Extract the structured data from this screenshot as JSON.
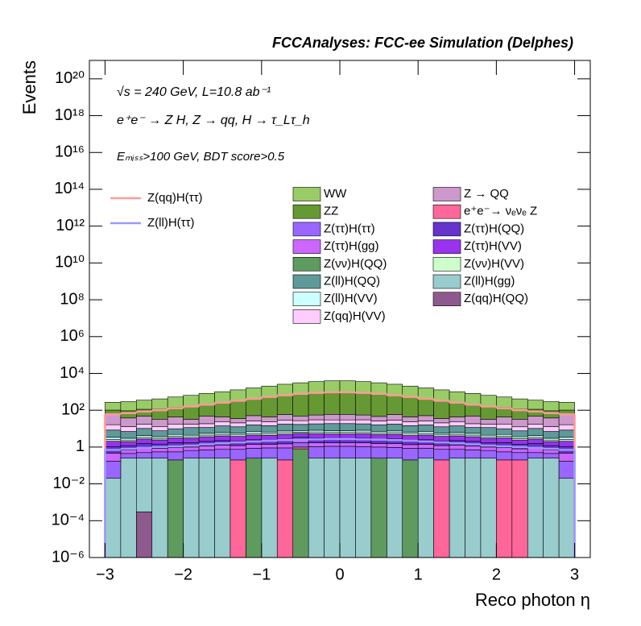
{
  "chart_data": {
    "type": "histogram",
    "stacked": true,
    "title": "FCCAnalyses: FCC-ee Simulation (Delphes)",
    "annotations": [
      "√s = 240 GeV, L=10.8 ab⁻¹",
      "e⁺e⁻ → Z H, Z → qq, H → τ_Lτ_h",
      "Eₘᵢₛₛ>100 GeV, BDT score>0.5"
    ],
    "x_label": "Reco photon η",
    "y_label": "Events",
    "log_y": true,
    "xlim": [
      -3.2,
      3.2
    ],
    "ylim": [
      1e-06,
      1e+21
    ],
    "xticks": [
      {
        "value": -3,
        "label": "−3"
      },
      {
        "value": -2,
        "label": "−2"
      },
      {
        "value": -1,
        "label": "−1"
      },
      0,
      1,
      2,
      3
    ],
    "yticks": [
      {
        "value": 1e-06,
        "label": "10⁻⁶"
      },
      {
        "value": 0.0001,
        "label": "10⁻⁴"
      },
      {
        "value": 0.01,
        "label": "10⁻²"
      },
      1,
      {
        "value": 100,
        "label": "10²"
      },
      {
        "value": 10000,
        "label": "10⁴"
      },
      {
        "value": 1000000.0,
        "label": "10⁶"
      },
      {
        "value": 100000000.0,
        "label": "10⁸"
      },
      {
        "value": 10000000000.0,
        "label": "10¹⁰"
      },
      {
        "value": 1000000000000.0,
        "label": "10¹²"
      },
      {
        "value": 100000000000000.0,
        "label": "10¹⁴"
      },
      {
        "value": 1e+16,
        "label": "10¹⁶"
      },
      {
        "value": 1e+18,
        "label": "10¹⁸"
      },
      {
        "value": 1e+20,
        "label": "10²⁰"
      }
    ],
    "bins": [
      -3,
      -2.8,
      -2.6,
      -2.4,
      -2.2,
      -2,
      -1.8,
      -1.6,
      -1.4,
      -1.2,
      -1,
      -0.8,
      -0.6,
      -0.4,
      -0.2,
      0,
      0.2,
      0.4,
      0.6,
      0.8,
      1,
      1.2,
      1.4,
      1.6,
      1.8,
      2,
      2.2,
      2.4,
      2.6,
      2.8,
      3
    ],
    "series": [
      {
        "name": "Z(qq)H(QQ)",
        "color": "#8e5a8e",
        "values": [
          0,
          0,
          0.0003,
          0,
          0,
          0,
          0,
          0,
          0,
          0,
          0,
          0,
          0,
          0,
          0,
          0,
          0,
          0,
          0,
          0,
          0,
          0,
          0,
          0,
          0,
          0,
          0,
          0,
          0,
          0
        ]
      },
      {
        "name": "Z(ll)H(gg)",
        "color": "#99cccc",
        "values": [
          0.02,
          0.25,
          0.25,
          0.25,
          0,
          0.25,
          0.25,
          0.25,
          0,
          0,
          0.25,
          0,
          0,
          0.25,
          0.25,
          0.25,
          0.25,
          0,
          0.25,
          0,
          0.25,
          0,
          0.25,
          0.25,
          0.25,
          0,
          0,
          0.25,
          0.25,
          0.02
        ]
      },
      {
        "name": "Z(νν)H(QQ)",
        "color": "#5f9a5f",
        "values": [
          0,
          0,
          0,
          0,
          0.2,
          0,
          0,
          0,
          0,
          0.25,
          0,
          0,
          0.8,
          0,
          0,
          0,
          0,
          0.25,
          0,
          0.2,
          0,
          0,
          0,
          0,
          0,
          0,
          0,
          0,
          0,
          0
        ]
      },
      {
        "name": "e⁺e⁻→ νₑνₑ Z",
        "color": "#ff6699",
        "values": [
          0,
          0,
          0,
          0,
          0,
          0,
          0,
          0,
          0.2,
          0,
          0,
          0.2,
          0.2,
          0,
          0,
          0,
          0,
          0,
          0,
          0,
          0,
          0.2,
          0,
          0,
          0,
          0.2,
          0.2,
          0,
          0,
          0
        ]
      },
      {
        "name": "Z(ττ)H(ττ)",
        "color": "#9966ff",
        "values": [
          0.15,
          0.2,
          0.25,
          0.3,
          0.35,
          0.4,
          0.45,
          0.5,
          0.55,
          0.6,
          0.65,
          0.7,
          0.75,
          0.8,
          0.85,
          0.85,
          0.8,
          0.75,
          0.7,
          0.65,
          0.6,
          0.55,
          0.5,
          0.45,
          0.4,
          0.35,
          0.3,
          0.25,
          0.2,
          0.15
        ]
      },
      {
        "name": "Z(ττ)H(gg)",
        "color": "#cc66ff",
        "values": [
          0.3,
          0.25,
          0.35,
          0.3,
          0.4,
          0.35,
          0.45,
          0.5,
          0.45,
          0.55,
          0.5,
          0.6,
          0.55,
          0.65,
          0.6,
          0.6,
          0.65,
          0.55,
          0.6,
          0.5,
          0.55,
          0.45,
          0.5,
          0.45,
          0.35,
          0.4,
          0.3,
          0.35,
          0.25,
          0.3
        ]
      },
      {
        "name": "Z(ττ)H(QQ)",
        "color": "#6633cc",
        "values": [
          0.6,
          0.5,
          0.7,
          0.6,
          0.8,
          0.7,
          0.9,
          1,
          0.9,
          1.1,
          1,
          1.2,
          1.1,
          1.3,
          1.2,
          1.2,
          1.3,
          1.1,
          1.2,
          1,
          1.1,
          0.9,
          1,
          0.9,
          0.7,
          0.8,
          0.6,
          0.7,
          0.5,
          0.6
        ]
      },
      {
        "name": "Z(ττ)H(VV)",
        "color": "#9933ee",
        "values": [
          1,
          0.8,
          1.2,
          1,
          1.4,
          1.3,
          1.6,
          1.8,
          1.7,
          2,
          1.9,
          2.2,
          2.1,
          2.4,
          2.3,
          2.3,
          2.4,
          2.1,
          2.2,
          1.9,
          2,
          1.7,
          1.8,
          1.6,
          1.3,
          1.4,
          1,
          1.2,
          0.8,
          1
        ]
      },
      {
        "name": "Z(νν)H(VV)",
        "color": "#ccffcc",
        "values": [
          0.5,
          0.4,
          0.6,
          0.5,
          0.7,
          0.6,
          0.8,
          0.9,
          0.8,
          1,
          0.9,
          1.1,
          1,
          1.2,
          1.1,
          1.1,
          1.2,
          1,
          1.1,
          0.9,
          1,
          0.8,
          0.9,
          0.8,
          0.6,
          0.7,
          0.5,
          0.6,
          0.4,
          0.5
        ]
      },
      {
        "name": "Z(ll)H(VV)",
        "color": "#ccffff",
        "values": [
          0.8,
          0.6,
          0.9,
          0.7,
          1,
          0.8,
          1.1,
          1.2,
          1,
          1.4,
          1.3,
          1.5,
          1.4,
          1.6,
          1.5,
          1.5,
          1.6,
          1.4,
          1.5,
          1.3,
          1.4,
          1,
          1.2,
          1.1,
          0.8,
          1,
          0.7,
          0.9,
          0.6,
          0.8
        ]
      },
      {
        "name": "Z(ll)H(QQ)",
        "color": "#5f9999",
        "values": [
          5,
          4,
          6,
          4,
          5,
          7,
          6,
          8,
          7,
          9,
          8,
          10,
          9,
          10,
          11,
          11,
          10,
          9,
          10,
          8,
          9,
          7,
          8,
          6,
          7,
          5,
          4,
          6,
          4,
          5
        ]
      },
      {
        "name": "Z(qq)H(VV)",
        "color": "#ffccff",
        "values": [
          8,
          6,
          7,
          5,
          8,
          6,
          7,
          9,
          8,
          10,
          9,
          11,
          10,
          12,
          11,
          11,
          12,
          10,
          11,
          9,
          10,
          8,
          9,
          7,
          6,
          8,
          5,
          7,
          6,
          8
        ]
      },
      {
        "name": "Z → QQ",
        "color": "#cc99cc",
        "values": [
          40,
          25,
          30,
          20,
          25,
          15,
          30,
          20,
          15,
          25,
          20,
          30,
          20,
          25,
          30,
          30,
          25,
          20,
          30,
          20,
          25,
          15,
          20,
          30,
          15,
          25,
          20,
          30,
          25,
          40
        ]
      },
      {
        "name": "ZZ",
        "color": "#669933",
        "values": [
          45,
          55,
          65,
          80,
          100,
          130,
          170,
          220,
          290,
          380,
          500,
          620,
          750,
          850,
          900,
          900,
          850,
          750,
          620,
          500,
          380,
          290,
          220,
          170,
          130,
          100,
          80,
          65,
          55,
          45
        ]
      },
      {
        "name": "WW",
        "color": "#99cc66",
        "values": [
          170,
          200,
          240,
          300,
          380,
          480,
          600,
          750,
          950,
          1200,
          1500,
          1900,
          2300,
          2700,
          3000,
          3000,
          2700,
          2300,
          1900,
          1500,
          1200,
          950,
          750,
          600,
          480,
          380,
          300,
          240,
          200,
          170
        ]
      }
    ],
    "lines": [
      {
        "name": "Z(qq)H(ττ)",
        "color": "#ff9999",
        "values": [
          60,
          70,
          85,
          100,
          130,
          160,
          200,
          260,
          330,
          420,
          530,
          650,
          780,
          880,
          950,
          950,
          880,
          780,
          650,
          530,
          420,
          330,
          260,
          200,
          160,
          130,
          100,
          85,
          70,
          60
        ]
      },
      {
        "name": "Z(ll)H(ττ)",
        "color": "#9999ff",
        "values": [
          0.7,
          0.8,
          0.9,
          1,
          1.1,
          1.2,
          1.4,
          1.6,
          1.8,
          2,
          2.2,
          2.4,
          2.5,
          2.6,
          2.7,
          2.7,
          2.6,
          2.5,
          2.4,
          2.2,
          2,
          1.8,
          1.6,
          1.4,
          1.2,
          1.1,
          1,
          0.9,
          0.8,
          0.7
        ]
      }
    ]
  }
}
